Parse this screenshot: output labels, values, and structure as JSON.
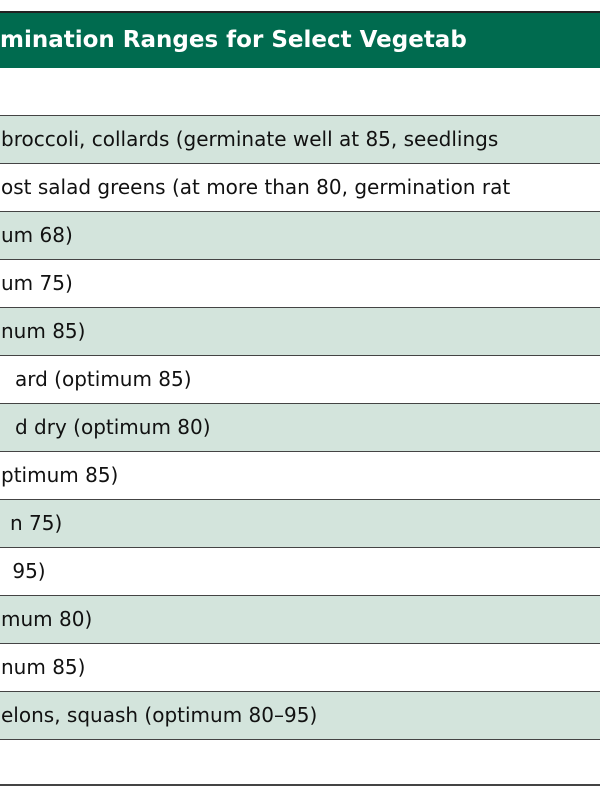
{
  "header": {
    "title": "mination Ranges for Select Vegetab"
  },
  "table": {
    "rows": [
      "broccoli, collards (germinate well at 85, seedlings",
      "ost salad greens (at more than 80, germination rat",
      "um 68)",
      "um 75)",
      "num 85)",
      "ard (optimum 85)",
      "d dry (optimum 80)",
      "ptimum 85)",
      "n 75)",
      " 95)",
      "mum 80)",
      "num 85)",
      "elons, squash (optimum 80–95)"
    ]
  }
}
